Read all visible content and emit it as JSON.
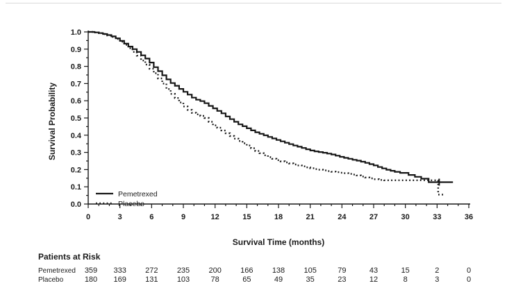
{
  "page": {
    "background": "#ffffff"
  },
  "colors": {
    "curve": "#161616",
    "axis": "#161616",
    "text": "#1a1a1a",
    "top_rule": "#d9d9d9"
  },
  "chart_data": {
    "type": "line",
    "subtype": "kaplan-meier-step",
    "xlabel": "Survival Time (months)",
    "ylabel": "Survival Probability",
    "xlim": [
      0,
      36
    ],
    "ylim": [
      0.0,
      1.0
    ],
    "x_major_ticks": [
      0,
      3,
      6,
      9,
      12,
      15,
      18,
      21,
      24,
      27,
      30,
      33,
      36
    ],
    "x_minor_step": 1,
    "y_major_ticks": [
      0.0,
      0.1,
      0.2,
      0.3,
      0.4,
      0.5,
      0.6,
      0.7,
      0.8,
      0.9,
      1.0
    ],
    "y_minor_step": 0.05,
    "grid": false,
    "legend_position": "lower-left-inside",
    "series": [
      {
        "name": "Pemetrexed",
        "style": "solid",
        "color": "#161616",
        "points": [
          [
            0,
            1.0
          ],
          [
            0.6,
            0.997
          ],
          [
            1,
            0.993
          ],
          [
            1.4,
            0.988
          ],
          [
            1.8,
            0.982
          ],
          [
            2.2,
            0.974
          ],
          [
            2.6,
            0.963
          ],
          [
            3,
            0.948
          ],
          [
            3.4,
            0.932
          ],
          [
            3.8,
            0.915
          ],
          [
            4.2,
            0.9
          ],
          [
            4.6,
            0.884
          ],
          [
            5,
            0.864
          ],
          [
            5.4,
            0.845
          ],
          [
            5.8,
            0.822
          ],
          [
            6.2,
            0.795
          ],
          [
            6.6,
            0.772
          ],
          [
            7,
            0.748
          ],
          [
            7.4,
            0.724
          ],
          [
            7.8,
            0.703
          ],
          [
            8.2,
            0.687
          ],
          [
            8.6,
            0.669
          ],
          [
            9,
            0.652
          ],
          [
            9.4,
            0.636
          ],
          [
            9.8,
            0.618
          ],
          [
            10.2,
            0.606
          ],
          [
            10.6,
            0.598
          ],
          [
            11,
            0.586
          ],
          [
            11.4,
            0.57
          ],
          [
            11.8,
            0.556
          ],
          [
            12.2,
            0.541
          ],
          [
            12.6,
            0.527
          ],
          [
            13,
            0.509
          ],
          [
            13.4,
            0.493
          ],
          [
            13.8,
            0.478
          ],
          [
            14.2,
            0.463
          ],
          [
            14.6,
            0.452
          ],
          [
            15,
            0.44
          ],
          [
            15.4,
            0.428
          ],
          [
            15.8,
            0.417
          ],
          [
            16.2,
            0.408
          ],
          [
            16.6,
            0.399
          ],
          [
            17,
            0.39
          ],
          [
            17.4,
            0.381
          ],
          [
            17.8,
            0.372
          ],
          [
            18.2,
            0.364
          ],
          [
            18.6,
            0.356
          ],
          [
            19,
            0.348
          ],
          [
            19.4,
            0.34
          ],
          [
            19.8,
            0.333
          ],
          [
            20.2,
            0.326
          ],
          [
            20.6,
            0.318
          ],
          [
            21,
            0.311
          ],
          [
            21.4,
            0.306
          ],
          [
            21.8,
            0.302
          ],
          [
            22.2,
            0.298
          ],
          [
            22.6,
            0.293
          ],
          [
            23,
            0.288
          ],
          [
            23.4,
            0.281
          ],
          [
            23.8,
            0.274
          ],
          [
            24.2,
            0.268
          ],
          [
            24.6,
            0.263
          ],
          [
            25,
            0.257
          ],
          [
            25.4,
            0.252
          ],
          [
            25.8,
            0.246
          ],
          [
            26.2,
            0.239
          ],
          [
            26.6,
            0.232
          ],
          [
            27,
            0.224
          ],
          [
            27.4,
            0.215
          ],
          [
            27.8,
            0.207
          ],
          [
            28.2,
            0.199
          ],
          [
            28.6,
            0.193
          ],
          [
            29,
            0.187
          ],
          [
            29.5,
            0.181
          ],
          [
            30.3,
            0.169
          ],
          [
            30.9,
            0.158
          ],
          [
            31.5,
            0.147
          ],
          [
            32.2,
            0.127
          ],
          [
            34.5,
            0.127
          ]
        ],
        "censor_marks": [
          [
            33.2,
            0.127
          ]
        ]
      },
      {
        "name": "Placebo",
        "style": "dotted",
        "color": "#161616",
        "points": [
          [
            0,
            1.0
          ],
          [
            0.6,
            0.997
          ],
          [
            1,
            0.993
          ],
          [
            1.4,
            0.988
          ],
          [
            1.8,
            0.98
          ],
          [
            2.2,
            0.971
          ],
          [
            2.6,
            0.959
          ],
          [
            3,
            0.943
          ],
          [
            3.4,
            0.925
          ],
          [
            3.8,
            0.905
          ],
          [
            4.2,
            0.884
          ],
          [
            4.6,
            0.862
          ],
          [
            5,
            0.834
          ],
          [
            5.4,
            0.81
          ],
          [
            5.8,
            0.786
          ],
          [
            6.2,
            0.76
          ],
          [
            6.6,
            0.73
          ],
          [
            7,
            0.7
          ],
          [
            7.4,
            0.668
          ],
          [
            7.8,
            0.64
          ],
          [
            8.2,
            0.616
          ],
          [
            8.6,
            0.59
          ],
          [
            9,
            0.567
          ],
          [
            9.4,
            0.547
          ],
          [
            9.8,
            0.53
          ],
          [
            10.2,
            0.521
          ],
          [
            10.6,
            0.512
          ],
          [
            11,
            0.5
          ],
          [
            11.4,
            0.478
          ],
          [
            11.8,
            0.457
          ],
          [
            12.2,
            0.443
          ],
          [
            12.6,
            0.427
          ],
          [
            13,
            0.411
          ],
          [
            13.4,
            0.395
          ],
          [
            13.8,
            0.38
          ],
          [
            14.2,
            0.366
          ],
          [
            14.6,
            0.353
          ],
          [
            15,
            0.34
          ],
          [
            15.4,
            0.324
          ],
          [
            15.8,
            0.308
          ],
          [
            16.2,
            0.295
          ],
          [
            16.6,
            0.283
          ],
          [
            17,
            0.272
          ],
          [
            17.4,
            0.263
          ],
          [
            17.8,
            0.255
          ],
          [
            18.2,
            0.248
          ],
          [
            18.6,
            0.242
          ],
          [
            19,
            0.236
          ],
          [
            19.4,
            0.23
          ],
          [
            19.8,
            0.224
          ],
          [
            20.2,
            0.219
          ],
          [
            20.6,
            0.213
          ],
          [
            21,
            0.208
          ],
          [
            21.4,
            0.203
          ],
          [
            21.8,
            0.199
          ],
          [
            22.2,
            0.195
          ],
          [
            22.6,
            0.191
          ],
          [
            23,
            0.188
          ],
          [
            23.4,
            0.185
          ],
          [
            23.8,
            0.182
          ],
          [
            24.2,
            0.179
          ],
          [
            24.6,
            0.175
          ],
          [
            25,
            0.171
          ],
          [
            25.4,
            0.166
          ],
          [
            25.8,
            0.16
          ],
          [
            26.2,
            0.154
          ],
          [
            26.6,
            0.149
          ],
          [
            27,
            0.144
          ],
          [
            27.5,
            0.14
          ],
          [
            28,
            0.138
          ],
          [
            33.1,
            0.138
          ],
          [
            33.1,
            0.055
          ],
          [
            33.7,
            0.055
          ]
        ],
        "censor_marks": []
      }
    ]
  },
  "legend": {
    "entries": [
      {
        "label": "Pemetrexed",
        "style": "solid"
      },
      {
        "label": "Placebo",
        "style": "dotted"
      }
    ]
  },
  "risk_table": {
    "header": "Patients at Risk",
    "time_points": [
      0,
      3,
      6,
      9,
      12,
      15,
      18,
      21,
      24,
      27,
      30,
      33,
      36
    ],
    "rows": [
      {
        "label": "Pemetrexed",
        "values": [
          359,
          333,
          272,
          235,
          200,
          166,
          138,
          105,
          79,
          43,
          15,
          2,
          0
        ]
      },
      {
        "label": "Placebo",
        "values": [
          180,
          169,
          131,
          103,
          78,
          65,
          49,
          35,
          23,
          12,
          8,
          3,
          0
        ]
      }
    ]
  }
}
